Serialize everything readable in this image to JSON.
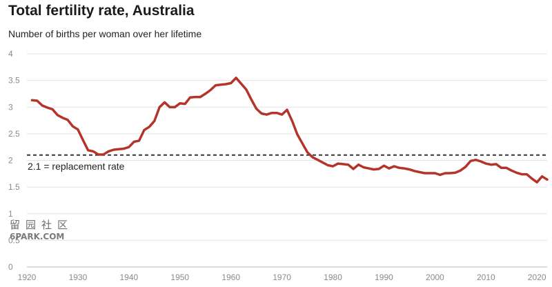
{
  "chart_data": {
    "type": "line",
    "title": "Total fertility rate, Australia",
    "subtitle": "Number of births per woman over her lifetime",
    "xlabel": "",
    "ylabel": "",
    "xlim": [
      1920,
      2022
    ],
    "ylim": [
      0,
      4
    ],
    "x_ticks": [
      1920,
      1930,
      1940,
      1950,
      1960,
      1970,
      1980,
      1990,
      2000,
      2010,
      2020
    ],
    "y_ticks": [
      "0",
      "0.5",
      "1",
      "1.5",
      "2",
      "2.5",
      "3",
      "3.5",
      "4"
    ],
    "grid": true,
    "series_color": "#b5342a",
    "reference_line": {
      "value": 2.1,
      "label": "2.1 = replacement rate",
      "style": "dashed",
      "color": "#333333"
    },
    "x": [
      1921,
      1922,
      1923,
      1924,
      1925,
      1926,
      1927,
      1928,
      1929,
      1930,
      1931,
      1932,
      1933,
      1934,
      1935,
      1936,
      1937,
      1938,
      1939,
      1940,
      1941,
      1942,
      1943,
      1944,
      1945,
      1946,
      1947,
      1948,
      1949,
      1950,
      1951,
      1952,
      1953,
      1954,
      1955,
      1956,
      1957,
      1958,
      1959,
      1960,
      1961,
      1962,
      1963,
      1964,
      1965,
      1966,
      1967,
      1968,
      1969,
      1970,
      1971,
      1972,
      1973,
      1974,
      1975,
      1976,
      1977,
      1978,
      1979,
      1980,
      1981,
      1982,
      1983,
      1984,
      1985,
      1986,
      1987,
      1988,
      1989,
      1990,
      1991,
      1992,
      1993,
      1994,
      1995,
      1996,
      1997,
      1998,
      1999,
      2000,
      2001,
      2002,
      2003,
      2004,
      2005,
      2006,
      2007,
      2008,
      2009,
      2010,
      2011,
      2012,
      2013,
      2014,
      2015,
      2016,
      2017,
      2018,
      2019,
      2020,
      2021,
      2022
    ],
    "y": [
      3.13,
      3.12,
      3.03,
      2.99,
      2.96,
      2.85,
      2.8,
      2.76,
      2.64,
      2.58,
      2.38,
      2.19,
      2.17,
      2.11,
      2.11,
      2.17,
      2.2,
      2.21,
      2.22,
      2.25,
      2.35,
      2.37,
      2.57,
      2.63,
      2.74,
      3.0,
      3.09,
      3.0,
      3.0,
      3.07,
      3.06,
      3.18,
      3.19,
      3.19,
      3.25,
      3.32,
      3.41,
      3.42,
      3.43,
      3.45,
      3.55,
      3.44,
      3.33,
      3.14,
      2.97,
      2.88,
      2.86,
      2.89,
      2.89,
      2.86,
      2.95,
      2.74,
      2.49,
      2.32,
      2.15,
      2.06,
      2.01,
      1.96,
      1.91,
      1.89,
      1.94,
      1.93,
      1.92,
      1.84,
      1.92,
      1.87,
      1.85,
      1.83,
      1.84,
      1.9,
      1.85,
      1.89,
      1.86,
      1.85,
      1.83,
      1.8,
      1.78,
      1.76,
      1.76,
      1.76,
      1.73,
      1.76,
      1.76,
      1.77,
      1.81,
      1.88,
      1.99,
      2.01,
      1.98,
      1.94,
      1.92,
      1.93,
      1.86,
      1.86,
      1.81,
      1.77,
      1.74,
      1.74,
      1.66,
      1.59,
      1.7,
      1.64
    ]
  },
  "watermark": {
    "text": "6PARK.COM",
    "glyphs": "留园社区"
  }
}
